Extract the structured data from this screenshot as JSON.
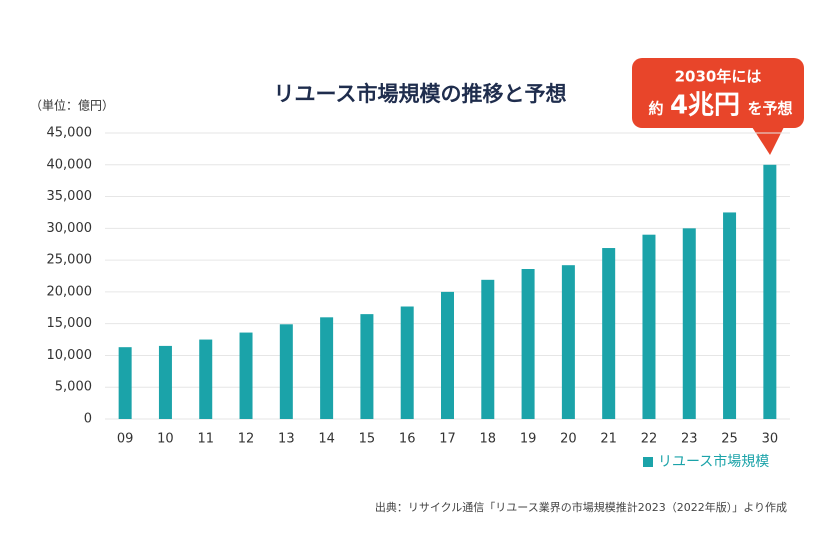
{
  "chart_data": {
    "type": "bar",
    "title": "リユース市場規模の推移と予想",
    "unit_label": "（単位：億円）",
    "categories": [
      "09",
      "10",
      "11",
      "12",
      "13",
      "14",
      "15",
      "16",
      "17",
      "18",
      "19",
      "20",
      "21",
      "22",
      "23",
      "25",
      "30"
    ],
    "series": [
      {
        "name": "リユース市場規模",
        "color": "#1ba3a9",
        "values": [
          11300,
          11500,
          12500,
          13600,
          14900,
          16000,
          16500,
          17700,
          20000,
          21900,
          23600,
          24200,
          26900,
          29000,
          30000,
          32500,
          40000
        ]
      }
    ],
    "ylim": [
      0,
      45000
    ],
    "yticks": [
      0,
      {
        "value": 5000,
        "label": "5,000"
      },
      {
        "value": 10000,
        "label": "10,000"
      },
      {
        "value": 15000,
        "label": "15,000"
      },
      {
        "value": 20000,
        "label": "20,000"
      },
      {
        "value": 25000,
        "label": "25,000"
      },
      {
        "value": 30000,
        "label": "30,000"
      },
      {
        "value": 35000,
        "label": "35,000"
      },
      {
        "value": 40000,
        "label": "40,000"
      },
      {
        "value": 45000,
        "label": "45,000"
      }
    ],
    "grid": true,
    "legend": "bottom-right",
    "callout": {
      "line1": "2030年には",
      "prefix": "約",
      "main": "4兆円",
      "suffix": "を予想",
      "color": "#e8452a"
    },
    "source": "出典：リサイクル通信「リユース業界の市場規模推計2023（2022年版）」より作成"
  }
}
